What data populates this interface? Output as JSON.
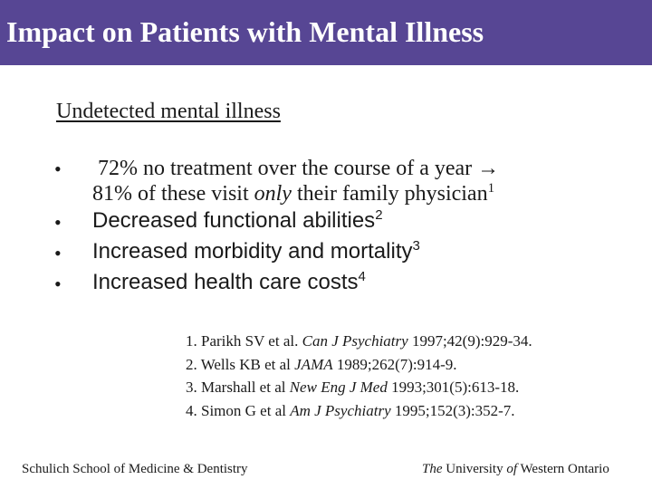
{
  "title": "Impact on Patients with Mental Illness",
  "subtitle": "Undetected mental illness",
  "bullets": [
    {
      "marker": "•",
      "line1": "72%  no treatment over the course of a year",
      "arrow": "→",
      "line2_a": "81% of these visit ",
      "line2_italic": "only",
      "line2_b": " their family physician",
      "sup": "1"
    },
    {
      "marker": "•",
      "text": "Decreased functional abilities",
      "sup": "2"
    },
    {
      "marker": "•",
      "text": "Increased morbidity and mortality",
      "sup": "3"
    },
    {
      "marker": "•",
      "text": "Increased health care costs",
      "sup": "4"
    }
  ],
  "references": [
    {
      "prefix": "1. Parikh SV et al. ",
      "journal": "Can J Psychiatry",
      "suffix": " 1997;42(9):929-34."
    },
    {
      "prefix": "2. Wells KB et al ",
      "journal": "JAMA",
      "suffix": " 1989;262(7):914-9."
    },
    {
      "prefix": "3. Marshall et al ",
      "journal": "New Eng J Med",
      "suffix": " 1993;301(5):613-18."
    },
    {
      "prefix": "4. Simon G et al ",
      "journal": "Am J Psychiatry",
      "suffix": " 1995;152(3):352-7."
    }
  ],
  "footer": {
    "left": "Schulich School of Medicine & Dentistry",
    "right_the": "The",
    "right_university": " University ",
    "right_of": "of",
    "right_rest": " Western Ontario"
  },
  "colors": {
    "title_bar": "#574694",
    "title_text": "#ffffff",
    "body_text": "#1a1a1a"
  }
}
